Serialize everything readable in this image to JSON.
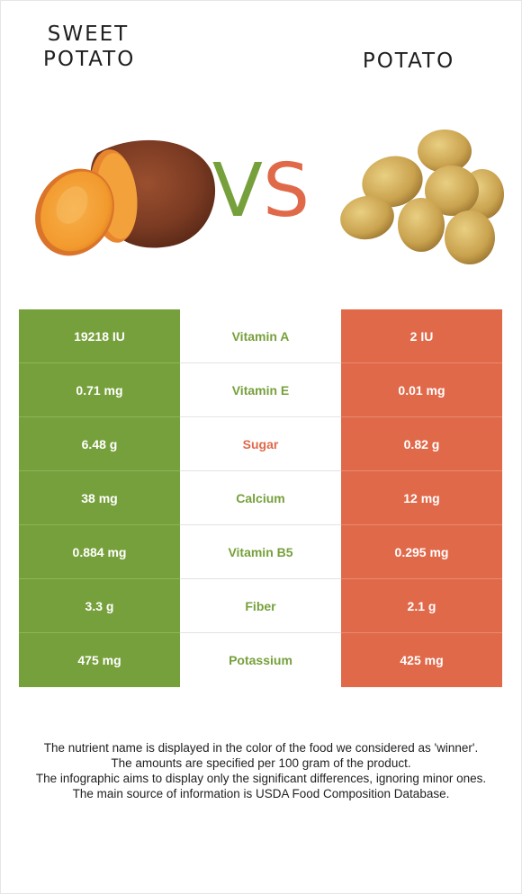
{
  "header": {
    "left_title_line1": "SWEET",
    "left_title_line2": "POTATO",
    "right_title": "POTATO",
    "vs_v": "V",
    "vs_s": "S"
  },
  "colors": {
    "sweet_potato": "#76a03b",
    "potato": "#e0694a"
  },
  "rows": [
    {
      "left": "19218 IU",
      "nutrient": "Vitamin A",
      "right": "2 IU",
      "winner": "sweet_potato"
    },
    {
      "left": "0.71 mg",
      "nutrient": "Vitamin E",
      "right": "0.01 mg",
      "winner": "sweet_potato"
    },
    {
      "left": "6.48 g",
      "nutrient": "Sugar",
      "right": "0.82 g",
      "winner": "potato"
    },
    {
      "left": "38 mg",
      "nutrient": "Calcium",
      "right": "12 mg",
      "winner": "sweet_potato"
    },
    {
      "left": "0.884 mg",
      "nutrient": "Vitamin B5",
      "right": "0.295 mg",
      "winner": "sweet_potato"
    },
    {
      "left": "3.3 g",
      "nutrient": "Fiber",
      "right": "2.1 g",
      "winner": "sweet_potato"
    },
    {
      "left": "475 mg",
      "nutrient": "Potassium",
      "right": "425 mg",
      "winner": "sweet_potato"
    }
  ],
  "footer": {
    "line1": "The nutrient name is displayed in the color of the food we considered as 'winner'.",
    "line2": "The amounts are specified per 100 gram of the product.",
    "line3": "The infographic aims to display only the significant differences, ignoring minor ones.",
    "line4": "The main source of information is USDA Food Composition Database."
  }
}
